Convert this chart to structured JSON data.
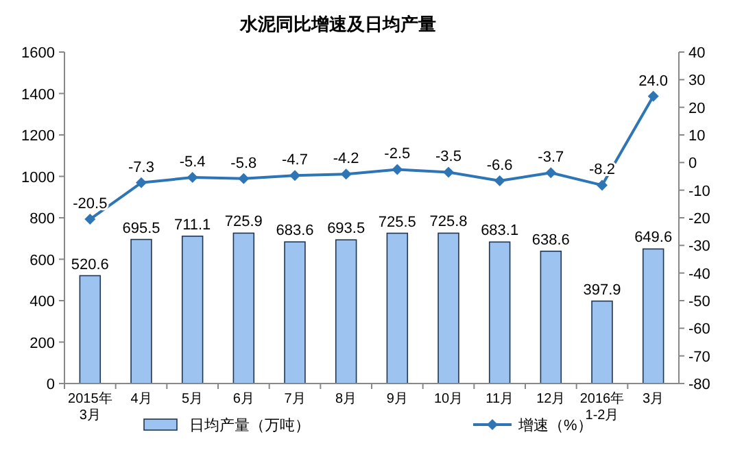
{
  "chart_data": {
    "type": "bar",
    "title": "水泥同比增速及日均产量",
    "categories": [
      "2015年\n3月",
      "4月",
      "5月",
      "6月",
      "7月",
      "8月",
      "9月",
      "10月",
      "11月",
      "12月",
      "2016年\n1-2月",
      "3月"
    ],
    "series": [
      {
        "name": "日均产量（万吨）",
        "color": "#9dc3f0",
        "values": [
          520.6,
          695.5,
          711.1,
          725.9,
          683.6,
          693.5,
          725.5,
          725.8,
          683.1,
          638.6,
          397.9,
          649.6
        ]
      },
      {
        "name": "增速（%）",
        "type": "line",
        "axis": "y2",
        "color": "#2e75b6",
        "marker": "diamond",
        "values": [
          -20.5,
          -7.3,
          -5.4,
          -5.8,
          -4.7,
          -4.2,
          -2.5,
          -3.5,
          -6.6,
          -3.7,
          -8.2,
          24.0
        ],
        "value_labels": [
          "-20.5",
          "-7.3",
          "-5.4",
          "-5.8",
          "-4.7",
          "-4.2",
          "-2.5",
          "-3.5",
          "-6.6",
          "-3.7",
          "-8.2",
          "24.0"
        ]
      }
    ],
    "data_labels": true,
    "ylim": [
      0,
      1600
    ],
    "yticks": [
      0,
      200,
      400,
      600,
      800,
      1000,
      1200,
      1400,
      1600
    ],
    "y2lim": [
      -80,
      40
    ],
    "y2ticks": [
      -80,
      -70,
      -60,
      -50,
      -40,
      -30,
      -20,
      -10,
      0,
      10,
      20,
      30,
      40
    ],
    "grid": false,
    "legend": "bottom"
  }
}
